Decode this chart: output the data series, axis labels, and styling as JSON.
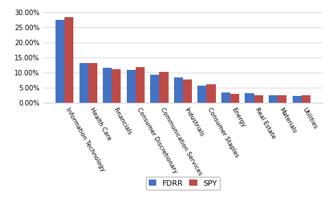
{
  "categories": [
    "Information Technology",
    "Health Care",
    "Financials",
    "Consumer Discretionary",
    "Communication Services",
    "Industrials",
    "Consumer Staples",
    "Energy",
    "Real Estate",
    "Materials",
    "Utilities"
  ],
  "fdrr": [
    0.275,
    0.132,
    0.115,
    0.11,
    0.094,
    0.085,
    0.058,
    0.034,
    0.032,
    0.025,
    0.023
  ],
  "spy": [
    0.284,
    0.132,
    0.111,
    0.119,
    0.102,
    0.077,
    0.062,
    0.031,
    0.025,
    0.025,
    0.025
  ],
  "fdrr_color": "#4472C4",
  "spy_color": "#BE4B48",
  "ylim": [
    0,
    0.32
  ],
  "yticks": [
    0.0,
    0.05,
    0.1,
    0.15,
    0.2,
    0.25,
    0.3
  ],
  "legend_labels": [
    "FDRR",
    "SPY"
  ],
  "background_color": "#FFFFFF",
  "grid_color": "#D0D0D0"
}
